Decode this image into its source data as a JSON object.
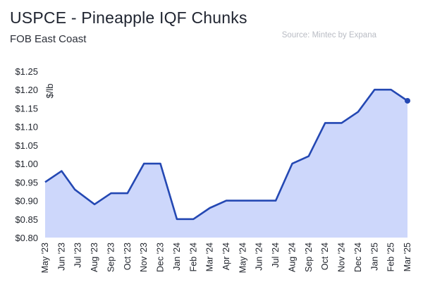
{
  "header": {
    "title": "USPCE - Pineapple IQF Chunks",
    "subtitle": "FOB East Coast",
    "source": "Source: Mintec by Expana"
  },
  "colors": {
    "line": "#2448b3",
    "area": "#cdd7fb",
    "text": "#22262e"
  },
  "chart_data": {
    "type": "area",
    "title": "USPCE - Pineapple IQF Chunks",
    "subtitle": "FOB East Coast",
    "ylabel": "$/lb",
    "xlabel": "",
    "ylim": [
      0.8,
      1.25
    ],
    "yticks": [
      0.8,
      0.85,
      0.9,
      0.95,
      1.0,
      1.05,
      1.1,
      1.15,
      1.2,
      1.25
    ],
    "ytick_labels": [
      "$0.80",
      "$0.85",
      "$0.90",
      "$0.95",
      "$1.00",
      "$1.05",
      "$1.10",
      "$1.15",
      "$1.20",
      "$1.25"
    ],
    "grid": false,
    "legend": "none",
    "categories": [
      "May '23",
      "Jun '23",
      "Jul '23",
      "Aug '23",
      "Sep '23",
      "Oct '23",
      "Nov '23",
      "Dec '23",
      "Jan '24",
      "Feb '24",
      "Mar '24",
      "Apr '24",
      "May '24",
      "Jun '24",
      "Jul '24",
      "Aug '24",
      "Sep '24",
      "Oct '24",
      "Nov '24",
      "Dec '24",
      "Jan '25",
      "Feb '25",
      "Mar '25"
    ],
    "points": [
      {
        "x": 0,
        "y": 0.95
      },
      {
        "x": 1,
        "y": 0.98
      },
      {
        "x": 1.8,
        "y": 0.93
      },
      {
        "x": 3,
        "y": 0.89
      },
      {
        "x": 4,
        "y": 0.92
      },
      {
        "x": 5,
        "y": 0.92
      },
      {
        "x": 6,
        "y": 1.0
      },
      {
        "x": 7,
        "y": 1.0
      },
      {
        "x": 8,
        "y": 0.85
      },
      {
        "x": 9,
        "y": 0.85
      },
      {
        "x": 10,
        "y": 0.88
      },
      {
        "x": 11,
        "y": 0.9
      },
      {
        "x": 12,
        "y": 0.9
      },
      {
        "x": 13,
        "y": 0.9
      },
      {
        "x": 14,
        "y": 0.9
      },
      {
        "x": 15,
        "y": 1.0
      },
      {
        "x": 16,
        "y": 1.02
      },
      {
        "x": 17,
        "y": 1.11
      },
      {
        "x": 18,
        "y": 1.11
      },
      {
        "x": 19,
        "y": 1.14
      },
      {
        "x": 20,
        "y": 1.2
      },
      {
        "x": 21,
        "y": 1.2
      },
      {
        "x": 22,
        "y": 1.17
      }
    ]
  }
}
